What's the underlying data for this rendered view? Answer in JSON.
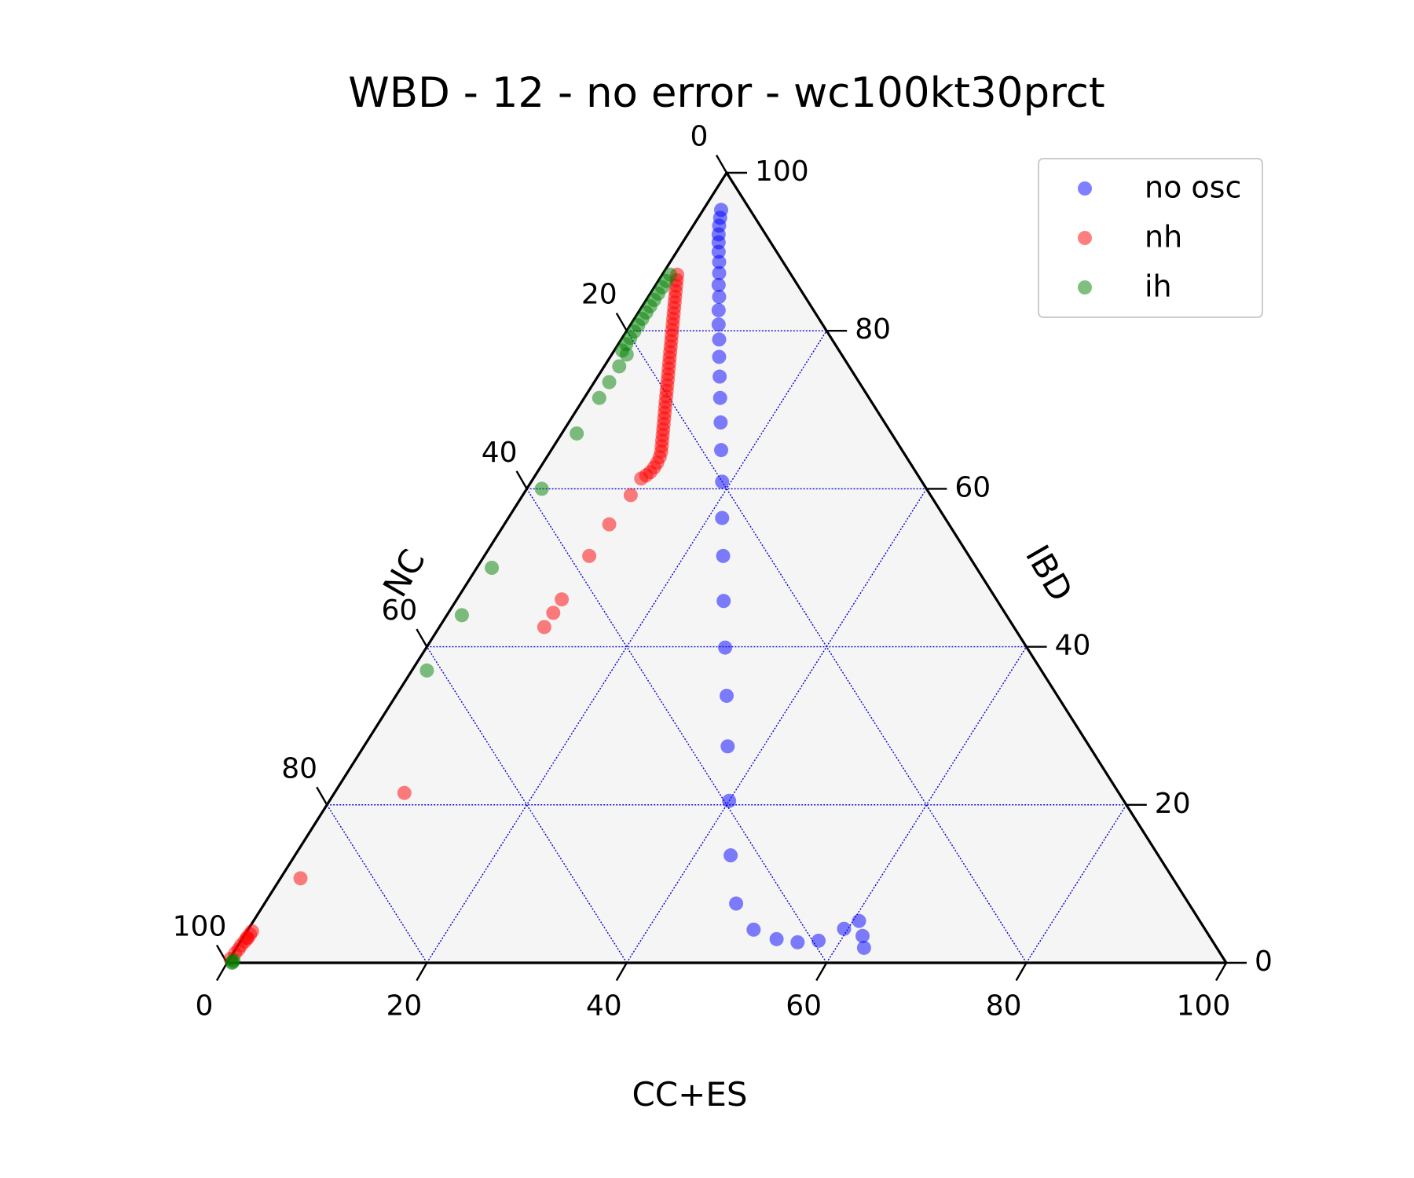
{
  "chart_data": {
    "type": "scatter",
    "subtype": "ternary",
    "title": "WBD - 12 - no error - wc100kt30prct",
    "axes": {
      "bottom": {
        "label": "CC+ES",
        "ticks": [
          "0",
          "20",
          "40",
          "60",
          "80",
          "100"
        ]
      },
      "right": {
        "label": "IBD",
        "ticks": [
          "0",
          "20",
          "40",
          "60",
          "80",
          "100"
        ]
      },
      "left": {
        "label": "NC",
        "ticks": [
          "0",
          "20",
          "40",
          "60",
          "80",
          "100"
        ]
      }
    },
    "range": [
      0,
      100
    ],
    "grid": true,
    "legend_position": "top-right",
    "series": [
      {
        "name": "no osc",
        "color": "#0000ff",
        "points": [
          [
            1.8,
            95.3
          ],
          [
            2.2,
            94.3
          ],
          [
            2.6,
            93.3
          ],
          [
            3.1,
            92.2
          ],
          [
            3.6,
            91.2
          ],
          [
            4.2,
            90.0
          ],
          [
            4.9,
            88.7
          ],
          [
            5.6,
            87.3
          ],
          [
            6.3,
            85.8
          ],
          [
            7.1,
            84.3
          ],
          [
            7.9,
            82.6
          ],
          [
            8.8,
            80.8
          ],
          [
            9.8,
            78.9
          ],
          [
            10.9,
            76.7
          ],
          [
            12.2,
            74.2
          ],
          [
            13.6,
            71.5
          ],
          [
            15.2,
            68.4
          ],
          [
            17.0,
            64.9
          ],
          [
            19.1,
            60.9
          ],
          [
            21.4,
            56.3
          ],
          [
            23.9,
            51.5
          ],
          [
            26.8,
            45.8
          ],
          [
            29.9,
            39.9
          ],
          [
            33.1,
            33.8
          ],
          [
            36.4,
            27.4
          ],
          [
            40.0,
            20.5
          ],
          [
            43.6,
            13.6
          ],
          [
            47.2,
            7.5
          ],
          [
            50.6,
            4.2
          ],
          [
            53.5,
            3.0
          ],
          [
            55.8,
            2.6
          ],
          [
            57.8,
            2.8
          ],
          [
            59.6,
            4.3
          ],
          [
            61.9,
            3.4
          ],
          [
            60.6,
            5.3
          ],
          [
            62.8,
            1.9
          ]
        ]
      },
      {
        "name": "nh",
        "color": "#ff0000",
        "points": [
          [
            1.5,
            87.1
          ],
          [
            1.8,
            86.4
          ],
          [
            2.1,
            85.7
          ],
          [
            2.4,
            85.0
          ],
          [
            2.7,
            84.3
          ],
          [
            3.0,
            83.6
          ],
          [
            3.3,
            82.9
          ],
          [
            3.6,
            82.2
          ],
          [
            3.9,
            81.5
          ],
          [
            4.2,
            80.8
          ],
          [
            4.5,
            80.1
          ],
          [
            4.8,
            79.4
          ],
          [
            5.1,
            78.7
          ],
          [
            5.4,
            78.0
          ],
          [
            5.7,
            77.3
          ],
          [
            6.0,
            76.6
          ],
          [
            6.3,
            75.9
          ],
          [
            6.6,
            75.2
          ],
          [
            6.9,
            74.5
          ],
          [
            7.2,
            73.8
          ],
          [
            7.5,
            73.1
          ],
          [
            7.8,
            72.4
          ],
          [
            8.1,
            71.7
          ],
          [
            8.4,
            71.0
          ],
          [
            8.7,
            70.3
          ],
          [
            9.0,
            69.6
          ],
          [
            9.3,
            68.9
          ],
          [
            9.6,
            68.2
          ],
          [
            9.9,
            67.5
          ],
          [
            10.2,
            66.8
          ],
          [
            10.5,
            66.1
          ],
          [
            10.8,
            65.4
          ],
          [
            11.1,
            64.7
          ],
          [
            11.3,
            64.0
          ],
          [
            11.4,
            63.3
          ],
          [
            11.4,
            62.7
          ],
          [
            11.3,
            62.1
          ],
          [
            11.1,
            61.7
          ],
          [
            10.8,
            61.3
          ],
          [
            10.8,
            59.2
          ],
          [
            10.5,
            55.5
          ],
          [
            10.5,
            51.5
          ],
          [
            10.5,
            46.0
          ],
          [
            10.5,
            44.3
          ],
          [
            10.5,
            42.5
          ],
          [
            7.0,
            21.5
          ],
          [
            2.0,
            10.7
          ],
          [
            0.5,
            3.1
          ],
          [
            0.5,
            4.0
          ],
          [
            0.5,
            3.6
          ],
          [
            0.4,
            3.2
          ],
          [
            0.4,
            2.7
          ],
          [
            0.3,
            2.2
          ],
          [
            0.3,
            1.7
          ],
          [
            0.2,
            1.2
          ],
          [
            0.1,
            0.5
          ]
        ]
      },
      {
        "name": "ih",
        "color": "#008000",
        "points": [
          [
            0.8,
            87.1
          ],
          [
            0.8,
            86.3
          ],
          [
            0.8,
            85.5
          ],
          [
            0.8,
            84.7
          ],
          [
            0.8,
            83.9
          ],
          [
            0.8,
            83.1
          ],
          [
            0.8,
            82.3
          ],
          [
            0.8,
            81.5
          ],
          [
            0.8,
            80.7
          ],
          [
            0.8,
            79.9
          ],
          [
            0.8,
            79.1
          ],
          [
            0.8,
            78.3
          ],
          [
            0.8,
            77.5
          ],
          [
            1.5,
            77.0
          ],
          [
            1.5,
            75.5
          ],
          [
            1.5,
            73.5
          ],
          [
            1.5,
            71.5
          ],
          [
            1.5,
            67.0
          ],
          [
            1.5,
            60.0
          ],
          [
            1.5,
            50.0
          ],
          [
            1.5,
            44.0
          ],
          [
            1.5,
            37.0
          ],
          [
            0.5,
            0.3
          ],
          [
            0.5,
            0.0
          ],
          [
            0.5,
            0.1
          ]
        ]
      }
    ]
  }
}
